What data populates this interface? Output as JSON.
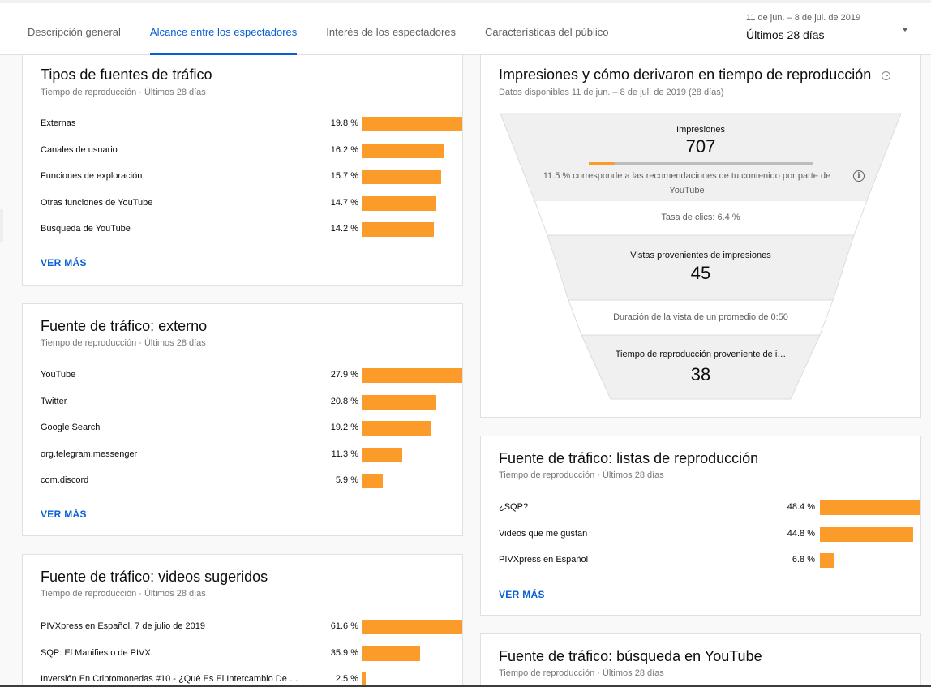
{
  "tabs": [
    {
      "label": "Descripción general",
      "active": false
    },
    {
      "label": "Alcance entre los espectadores",
      "active": true
    },
    {
      "label": "Interés de los espectadores",
      "active": false
    },
    {
      "label": "Características del público",
      "active": false
    }
  ],
  "date_range": {
    "sub": "11 de jun. – 8 de jul. de 2019",
    "main": "Últimos 28 días"
  },
  "bar_color": "#fb9b2a",
  "accent_color": "#065fd4",
  "traffic_types": {
    "title": "Tipos de fuentes de tráfico",
    "subtitle": "Tiempo de reproducción · Últimos 28 días",
    "rows": [
      {
        "label": "Externas",
        "pct": "19.8 %",
        "value": 19.8
      },
      {
        "label": "Canales de usuario",
        "pct": "16.2 %",
        "value": 16.2
      },
      {
        "label": "Funciones de exploración",
        "pct": "15.7 %",
        "value": 15.7
      },
      {
        "label": "Otras funciones de YouTube",
        "pct": "14.7 %",
        "value": 14.7
      },
      {
        "label": "Búsqueda de YouTube",
        "pct": "14.2 %",
        "value": 14.2
      }
    ],
    "more": "VER MÁS"
  },
  "external": {
    "title": "Fuente de tráfico: externo",
    "subtitle": "Tiempo de reproducción · Últimos 28 días",
    "rows": [
      {
        "label": "YouTube",
        "pct": "27.9 %",
        "value": 27.9
      },
      {
        "label": "Twitter",
        "pct": "20.8 %",
        "value": 20.8
      },
      {
        "label": "Google Search",
        "pct": "19.2 %",
        "value": 19.2
      },
      {
        "label": "org.telegram.messenger",
        "pct": "11.3 %",
        "value": 11.3
      },
      {
        "label": "com.discord",
        "pct": "5.9 %",
        "value": 5.9
      }
    ],
    "more": "VER MÁS"
  },
  "suggested": {
    "title": "Fuente de tráfico: videos sugeridos",
    "subtitle": "Tiempo de reproducción · Últimos 28 días",
    "rows": [
      {
        "label": "PIVXpress en Español, 7 de julio de 2019",
        "pct": "61.6 %",
        "value": 61.6
      },
      {
        "label": "SQP: El Manifiesto de PIVX",
        "pct": "35.9 %",
        "value": 35.9
      },
      {
        "label": "Inversión En Criptomonedas #10 - ¿Qué Es El Intercambio De …",
        "pct": "2.5 %",
        "value": 2.5
      }
    ]
  },
  "funnel": {
    "title": "Impresiones y cómo derivaron en tiempo de reproducción",
    "subtitle": "Datos disponibles 11 de jun. – 8 de jul. de 2019 (28 días)",
    "impressions_label": "Impresiones",
    "impressions_value": "707",
    "recommended_fraction": 0.115,
    "impressions_note": "11.5 % corresponde a las recomendaciones de tu contenido por parte de YouTube",
    "ctr": "Tasa de clics: 6.4 %",
    "views_label": "Vistas provenientes de impresiones",
    "views_value": "45",
    "avg_duration": "Duración de la vista de un promedio de 0:50",
    "watch_label": "Tiempo de reproducción proveniente de i…",
    "watch_value": "38"
  },
  "playlists": {
    "title": "Fuente de tráfico: listas de reproducción",
    "subtitle": "Tiempo de reproducción · Últimos 28 días",
    "rows": [
      {
        "label": "¿SQP?",
        "pct": "48.4 %",
        "value": 48.4
      },
      {
        "label": "Videos que me gustan",
        "pct": "44.8 %",
        "value": 44.8
      },
      {
        "label": "PIVXpress en Español",
        "pct": "6.8 %",
        "value": 6.8
      }
    ],
    "more": "VER MÁS"
  },
  "yt_search": {
    "title": "Fuente de tráfico: búsqueda en YouTube",
    "subtitle": "Tiempo de reproducción · Últimos 28 días"
  }
}
